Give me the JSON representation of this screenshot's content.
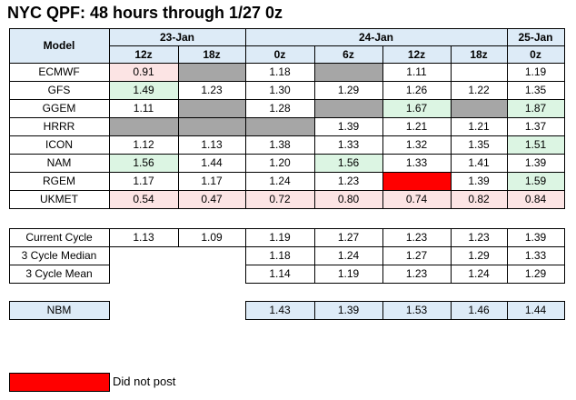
{
  "title": "NYC QPF: 48 hours through 1/27 0z",
  "colors": {
    "header": "#ddebf7",
    "missing": "#a6a6a6",
    "low": "#fce4e4",
    "high": "#dcf5e3",
    "not_posted": "#ff0000"
  },
  "table": {
    "model_header": "Model",
    "dates": [
      {
        "label": "23-Jan",
        "span": 2
      },
      {
        "label": "24-Jan",
        "span": 4
      },
      {
        "label": "25-Jan",
        "span": 1
      }
    ],
    "times": [
      "12z",
      "18z",
      "0z",
      "6z",
      "12z",
      "18z",
      "0z"
    ],
    "rows": [
      {
        "model": "ECMWF",
        "cells": [
          {
            "value": "0.91",
            "shade": "low"
          },
          {
            "shade": "missing"
          },
          "1.18",
          {
            "shade": "missing"
          },
          "1.11",
          null,
          "1.19"
        ]
      },
      {
        "model": "GFS",
        "cells": [
          {
            "value": "1.49",
            "shade": "high"
          },
          "1.23",
          "1.30",
          "1.29",
          "1.26",
          "1.22",
          "1.35"
        ]
      },
      {
        "model": "GGEM",
        "cells": [
          "1.11",
          {
            "shade": "missing"
          },
          "1.28",
          {
            "shade": "missing"
          },
          {
            "value": "1.67",
            "shade": "high"
          },
          {
            "shade": "missing"
          },
          {
            "value": "1.87",
            "shade": "high"
          }
        ]
      },
      {
        "model": "HRRR",
        "cells": [
          {
            "shade": "missing"
          },
          {
            "shade": "missing"
          },
          {
            "shade": "missing"
          },
          "1.39",
          "1.21",
          "1.21",
          "1.37"
        ]
      },
      {
        "model": "ICON",
        "cells": [
          "1.12",
          "1.13",
          "1.38",
          "1.33",
          "1.32",
          "1.35",
          {
            "value": "1.51",
            "shade": "high"
          }
        ]
      },
      {
        "model": "NAM",
        "cells": [
          {
            "value": "1.56",
            "shade": "high"
          },
          "1.44",
          "1.20",
          {
            "value": "1.56",
            "shade": "high"
          },
          "1.33",
          "1.41",
          "1.39"
        ]
      },
      {
        "model": "RGEM",
        "cells": [
          "1.17",
          "1.17",
          "1.24",
          "1.23",
          {
            "shade": "not_posted"
          },
          "1.39",
          {
            "value": "1.59",
            "shade": "high"
          }
        ]
      },
      {
        "model": "UKMET",
        "cells": [
          {
            "value": "0.54",
            "shade": "low"
          },
          {
            "value": "0.47",
            "shade": "low"
          },
          {
            "value": "0.72",
            "shade": "low"
          },
          {
            "value": "0.80",
            "shade": "low"
          },
          {
            "value": "0.74",
            "shade": "low"
          },
          {
            "value": "0.82",
            "shade": "low"
          },
          {
            "value": "0.84",
            "shade": "low"
          }
        ]
      }
    ]
  },
  "summary": {
    "rows": [
      {
        "label": "Current Cycle",
        "cells": [
          "1.13",
          "1.09",
          "1.19",
          "1.27",
          "1.23",
          "1.23",
          "1.39"
        ]
      },
      {
        "label": "3 Cycle Median",
        "cells": [
          null,
          null,
          "1.18",
          "1.24",
          "1.27",
          "1.29",
          "1.33"
        ]
      },
      {
        "label": "3 Cycle Mean",
        "cells": [
          null,
          null,
          "1.14",
          "1.19",
          "1.23",
          "1.24",
          "1.29"
        ]
      }
    ]
  },
  "nbm": {
    "label": "NBM",
    "shade": "header",
    "cells": [
      null,
      null,
      "1.43",
      "1.39",
      "1.53",
      "1.46",
      "1.44"
    ]
  },
  "legend": {
    "shade": "not_posted",
    "label": "Did not post"
  }
}
